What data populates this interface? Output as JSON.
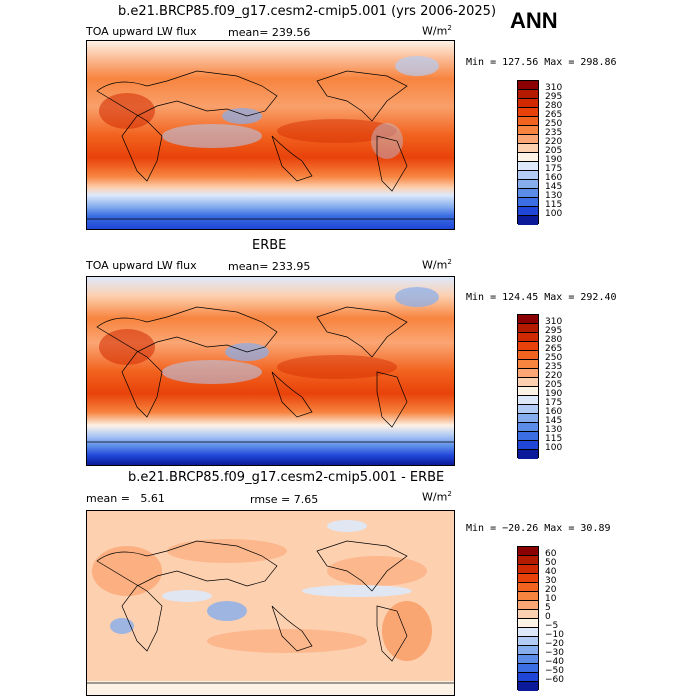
{
  "season": "ANN",
  "units": "W/m",
  "units_exp": "2",
  "panels": [
    {
      "title": "b.e21.BRCP85.f09_g17.cesm2-cmip5.001 (yrs 2006-2025)",
      "left_label": "TOA upward LW flux",
      "stat_label": "mean=",
      "stat_value": "239.56",
      "minmax": "Min = 127.56 Max = 298.86",
      "colorbar": {
        "levels": [
          "310",
          "295",
          "280",
          "265",
          "250",
          "235",
          "220",
          "205",
          "190",
          "175",
          "160",
          "145",
          "130",
          "115",
          "100"
        ],
        "colors": [
          "#8b0000",
          "#b41a00",
          "#d22a00",
          "#e8420a",
          "#f2631f",
          "#f7843f",
          "#fba674",
          "#fdd0b0",
          "#fdf2e6",
          "#dde9fb",
          "#b3ccf5",
          "#86aeee",
          "#5b8de8",
          "#3b6ee3",
          "#2046d8",
          "#0a1a98"
        ]
      }
    },
    {
      "title": "ERBE",
      "left_label": "TOA upward LW flux",
      "stat_label": "mean=",
      "stat_value": "233.95",
      "minmax": "Min = 124.45 Max = 292.40",
      "colorbar": {
        "levels": [
          "310",
          "295",
          "280",
          "265",
          "250",
          "235",
          "220",
          "205",
          "190",
          "175",
          "160",
          "145",
          "130",
          "115",
          "100"
        ],
        "colors": [
          "#8b0000",
          "#b41a00",
          "#d22a00",
          "#e8420a",
          "#f2631f",
          "#f7843f",
          "#fba674",
          "#fdd0b0",
          "#fdf2e6",
          "#dde9fb",
          "#b3ccf5",
          "#86aeee",
          "#5b8de8",
          "#3b6ee3",
          "#2046d8",
          "#0a1a98"
        ]
      }
    },
    {
      "title": "b.e21.BRCP85.f09_g17.cesm2-cmip5.001 - ERBE",
      "left_label": "mean =   5.61",
      "stat_label": "rmse =",
      "stat_value": "7.65",
      "minmax": "Min = −20.26 Max =  30.89",
      "colorbar": {
        "levels": [
          "60",
          "50",
          "40",
          "30",
          "20",
          "10",
          "5",
          "0",
          "−5",
          "−10",
          "−20",
          "−30",
          "−40",
          "−50",
          "−60"
        ],
        "colors": [
          "#8b0000",
          "#b41a00",
          "#d22a00",
          "#e8420a",
          "#f2631f",
          "#f7843f",
          "#fba674",
          "#fdd0b0",
          "#fdf2e6",
          "#dde9fb",
          "#b3ccf5",
          "#86aeee",
          "#5b8de8",
          "#3b6ee3",
          "#2046d8",
          "#0a1a98"
        ]
      }
    }
  ]
}
